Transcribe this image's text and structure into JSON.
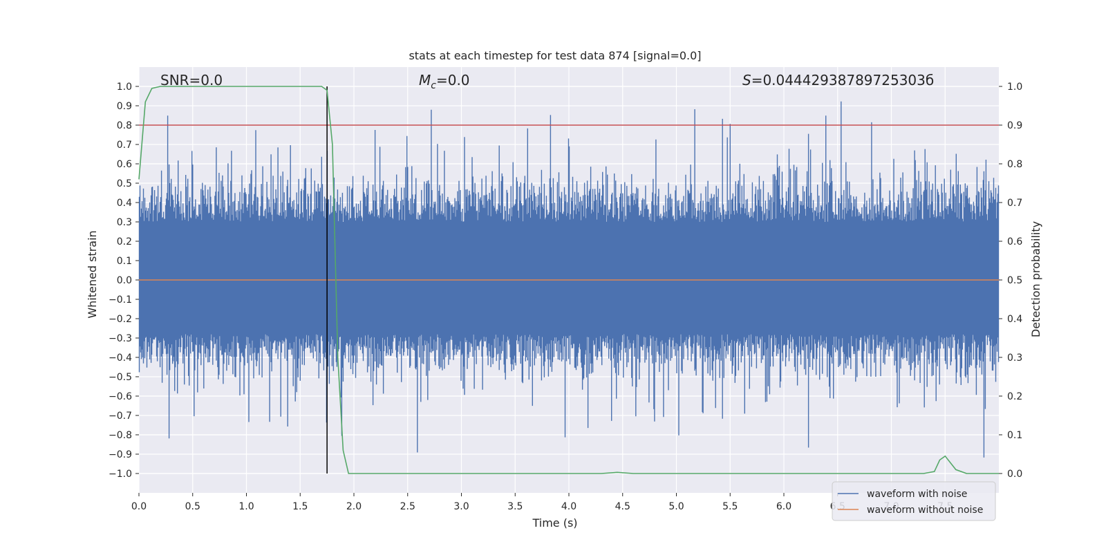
{
  "chart_data": {
    "type": "line",
    "title": "stats at each timestep for test data 874 [signal=0.0]",
    "xlabel": "Time (s)",
    "ylabel": "Whitened strain",
    "ylabel_right": "Detection probability",
    "xlim": [
      0.0,
      8.0
    ],
    "ylim": [
      -1.1,
      1.1
    ],
    "ylim_right": [
      -0.05,
      1.05
    ],
    "xticks": [
      0.0,
      0.5,
      1.0,
      1.5,
      2.0,
      2.5,
      3.0,
      3.5,
      4.0,
      4.5,
      5.0,
      5.5,
      6.0,
      6.5,
      7.0,
      7.5
    ],
    "xtick_labels": [
      "0.0",
      "0.5",
      "1.0",
      "1.5",
      "2.0",
      "2.5",
      "3.0",
      "3.5",
      "4.0",
      "4.5",
      "5.0",
      "5.5",
      "6.0",
      "6.5",
      "7.0",
      "7.5"
    ],
    "yticks": [
      1.0,
      0.9,
      0.8,
      0.7,
      0.6,
      0.5,
      0.4,
      0.3,
      0.2,
      0.1,
      0.0,
      -0.1,
      -0.2,
      -0.3,
      -0.4,
      -0.5,
      -0.6,
      -0.7,
      -0.8,
      -0.9,
      -1.0
    ],
    "ytick_labels": [
      "1.0",
      "0.9",
      "0.8",
      "0.7",
      "0.6",
      "0.5",
      "0.4",
      "0.3",
      "0.2",
      "0.1",
      "0.0",
      "−0.1",
      "−0.2",
      "−0.3",
      "−0.4",
      "−0.5",
      "−0.6",
      "−0.7",
      "−0.8",
      "−0.9",
      "−1.0"
    ],
    "yticks_right": [
      1.0,
      0.9,
      0.8,
      0.7,
      0.6,
      0.5,
      0.4,
      0.3,
      0.2,
      0.1,
      0.0
    ],
    "ytick_right_labels": [
      "1.0",
      "0.9",
      "0.8",
      "0.7",
      "0.6",
      "0.5",
      "0.4",
      "0.3",
      "0.2",
      "0.1",
      "0.0"
    ],
    "grid": true,
    "annotations": {
      "snr": "SNR=0.0",
      "mc_symbol": "M",
      "mc_sub": "c",
      "mc_value": "=0.0",
      "s_symbol": "S",
      "s_value": "=0.04442938789725303б"
    },
    "vertical_marker_x": 1.75,
    "threshold_right": 0.9,
    "series": [
      {
        "name": "waveform with noise",
        "color": "#4c72b0",
        "axis": "left",
        "noise_seed": 874,
        "duration_s": 8.0
      },
      {
        "name": "waveform without noise",
        "color": "#dd8452",
        "axis": "left",
        "x": [
          0.0,
          8.0
        ],
        "y": [
          0.0,
          0.0
        ]
      },
      {
        "name": "detection probability",
        "color": "#55a868",
        "axis": "right",
        "x": [
          0.0,
          0.06,
          0.12,
          0.2,
          0.4,
          1.0,
          1.5,
          1.7,
          1.75,
          1.8,
          1.85,
          1.9,
          1.95,
          2.0,
          3.0,
          4.0,
          4.3,
          4.45,
          4.6,
          5.0,
          6.0,
          7.0,
          7.3,
          7.4,
          7.45,
          7.5,
          7.6,
          7.7,
          8.0
        ],
        "y": [
          0.76,
          0.96,
          0.995,
          1.0,
          1.0,
          1.0,
          1.0,
          1.0,
          0.99,
          0.85,
          0.3,
          0.06,
          0.0,
          0.0,
          0.0,
          0.0,
          0.0,
          0.003,
          0.0,
          0.0,
          0.0,
          0.0,
          0.0,
          0.005,
          0.035,
          0.045,
          0.01,
          0.0,
          0.0
        ]
      }
    ],
    "legend": {
      "placement": "lower-right",
      "entries": [
        {
          "label": "waveform with noise",
          "color": "#4c72b0"
        },
        {
          "label": "waveform without noise",
          "color": "#dd8452"
        }
      ]
    },
    "colors": {
      "plot_background": "#eaeaf2",
      "grid": "#ffffff",
      "threshold": "#c44e52",
      "marker": "#000000"
    }
  }
}
